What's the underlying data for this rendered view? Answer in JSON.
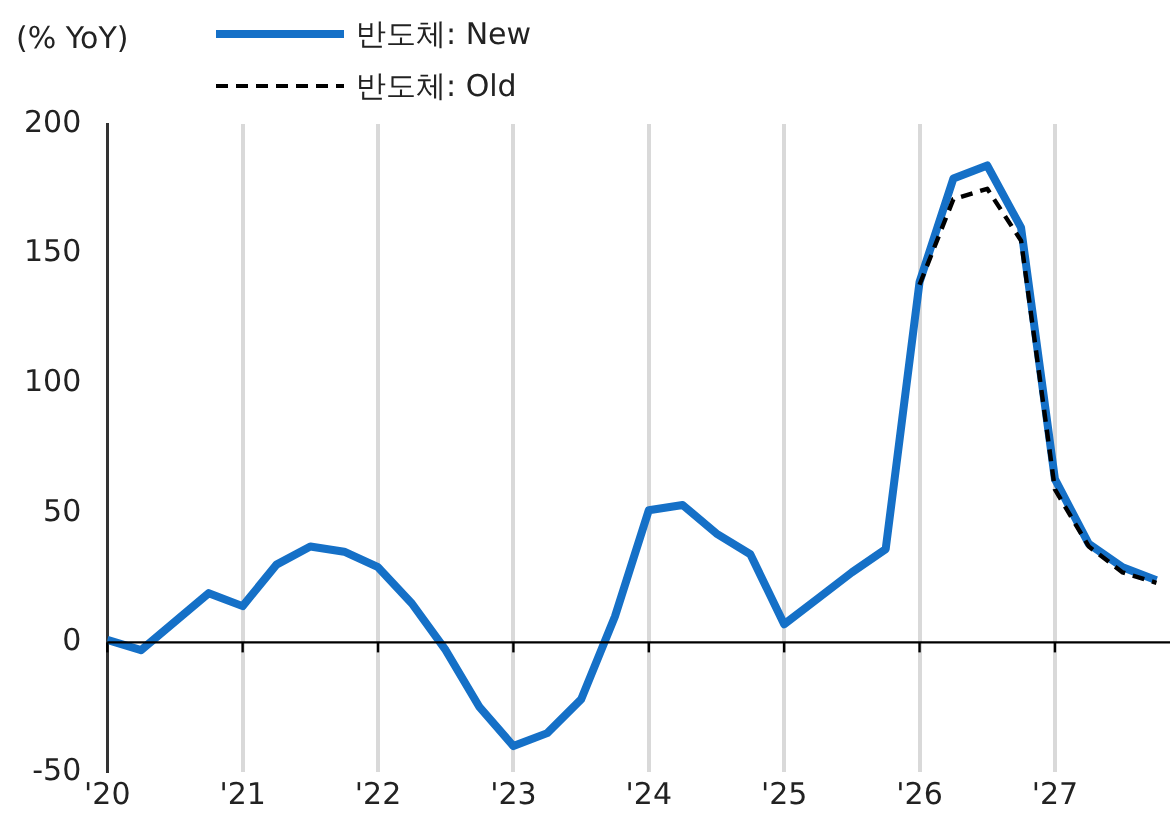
{
  "chart_data": {
    "type": "line",
    "ylabel": "(% YoY)",
    "x": [
      2020,
      2020.25,
      2020.5,
      2020.75,
      2021,
      2021.25,
      2021.5,
      2021.75,
      2022,
      2022.25,
      2022.5,
      2022.75,
      2023,
      2023.25,
      2023.5,
      2023.75,
      2024,
      2024.25,
      2024.5,
      2024.75,
      2025,
      2025.25,
      2025.5,
      2025.75,
      2026,
      2026.25,
      2026.5,
      2026.75,
      2027,
      2027.25,
      2027.5,
      2027.75
    ],
    "series": [
      {
        "name": "반도체: New",
        "color": "#1570c7",
        "line_style": "solid",
        "values": [
          1,
          -3,
          8,
          19,
          14,
          30,
          37,
          35,
          29,
          15,
          -3,
          -25,
          -40,
          -35,
          -22,
          10,
          51,
          53,
          42,
          34,
          7,
          17,
          27,
          36,
          139,
          179,
          184,
          160,
          63,
          38,
          29,
          24
        ]
      },
      {
        "name": "반도체: Old",
        "color": "#000000",
        "line_style": "dashed",
        "x": [
          2026,
          2026.25,
          2026.5,
          2026.75,
          2027,
          2027.25,
          2027.5,
          2027.75
        ],
        "values": [
          138,
          171,
          175,
          155,
          59,
          37,
          27,
          23
        ]
      }
    ],
    "xlim": [
      2020,
      2027.85
    ],
    "xticks": [
      {
        "value": 2020,
        "label": "'20"
      },
      {
        "value": 2021,
        "label": "'21"
      },
      {
        "value": 2022,
        "label": "'22"
      },
      {
        "value": 2023,
        "label": "'23"
      },
      {
        "value": 2024,
        "label": "'24"
      },
      {
        "value": 2025,
        "label": "'25"
      },
      {
        "value": 2026,
        "label": "'26"
      },
      {
        "value": 2027,
        "label": "'27"
      }
    ],
    "ylim": [
      -50,
      200
    ],
    "yticks": [
      -50,
      0,
      50,
      100,
      150,
      200
    ],
    "ref_lines": [
      {
        "axis": "y",
        "value": 0,
        "color": "#000000"
      }
    ],
    "grid": "x",
    "legend": "top",
    "marker": "none"
  }
}
